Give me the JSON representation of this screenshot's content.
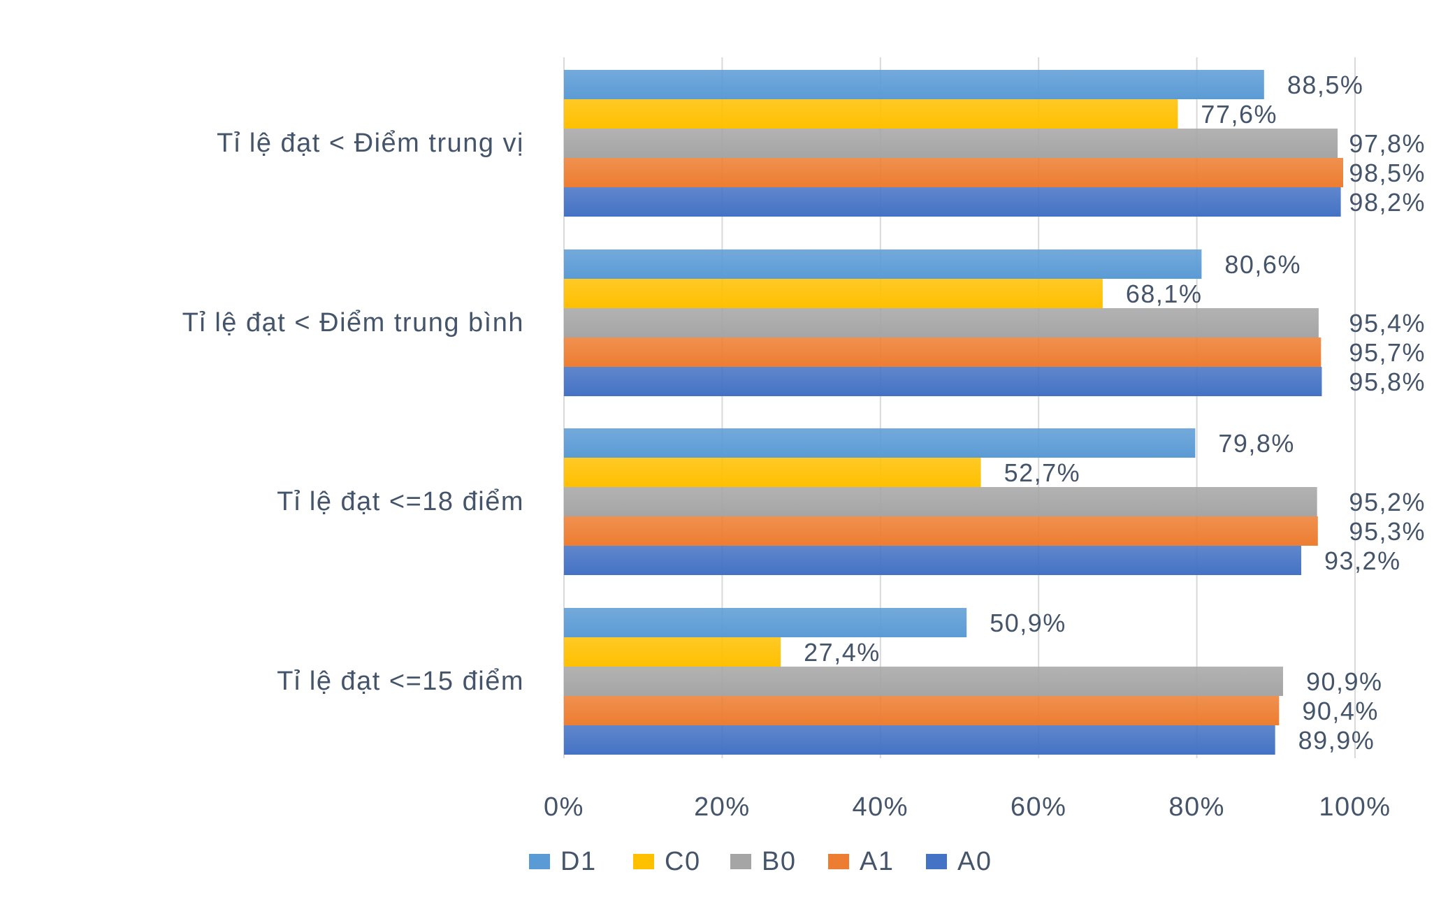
{
  "chart_data": {
    "type": "bar",
    "orientation": "horizontal",
    "title": "",
    "xlabel": "",
    "ylabel": "",
    "xlim": [
      0,
      100
    ],
    "grid": true,
    "legend_position": "bottom",
    "categories": [
      "Tỉ lệ đạt < Điểm trung vị",
      "Tỉ lệ đạt < Điểm trung bình",
      "Tỉ lệ đạt <=18 điểm",
      "Tỉ lệ đạt <=15 điểm"
    ],
    "ticks": [
      "0%",
      "20%",
      "40%",
      "60%",
      "80%",
      "100%"
    ],
    "series": [
      {
        "name": "D1",
        "color": "#5b9bd5",
        "values": [
          88.5,
          80.6,
          79.8,
          50.9
        ],
        "labels": [
          "88,5%",
          "80,6%",
          "79,8%",
          "50,9%"
        ]
      },
      {
        "name": "C0",
        "color": "#ffc000",
        "values": [
          77.6,
          68.1,
          52.7,
          27.4
        ],
        "labels": [
          "77,6%",
          "68,1%",
          "52,7%",
          "27,4%"
        ]
      },
      {
        "name": "B0",
        "color": "#a5a5a5",
        "values": [
          97.8,
          95.4,
          95.2,
          90.9
        ],
        "labels": [
          "97,8%",
          "95,4%",
          "95,2%",
          "90,9%"
        ]
      },
      {
        "name": "A1",
        "color": "#ed7d31",
        "values": [
          98.5,
          95.7,
          95.3,
          90.4
        ],
        "labels": [
          "98,5%",
          "95,7%",
          "95,3%",
          "90,4%"
        ]
      },
      {
        "name": "A0",
        "color": "#4472c4",
        "values": [
          98.2,
          95.8,
          93.2,
          89.9
        ],
        "labels": [
          "98,2%",
          "95,8%",
          "93,2%",
          "89,9%"
        ]
      }
    ]
  }
}
